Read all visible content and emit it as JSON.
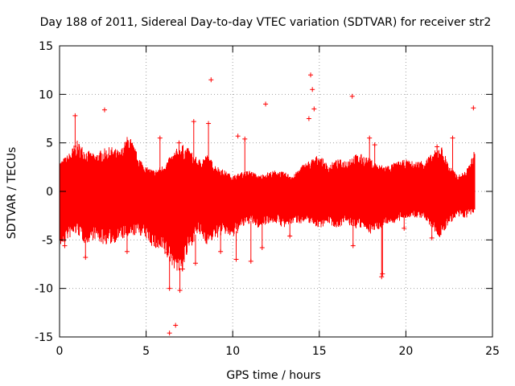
{
  "chart_data": {
    "type": "scatter",
    "title": "Day 188 of 2011, Sidereal Day-to-day VTEC variation (SDTVAR) for receiver str2",
    "xlabel": "GPS time / hours",
    "ylabel": "SDTVAR / TECUs",
    "xlim": [
      0,
      25
    ],
    "ylim": [
      -15,
      15
    ],
    "grid": true,
    "marker": "+",
    "series_color": "#ff0000",
    "xticks": [
      0,
      5,
      10,
      15,
      20,
      25
    ],
    "yticks": [
      -15,
      -10,
      -5,
      0,
      5,
      10,
      15
    ],
    "xtick_labels": [
      "0",
      "5",
      "10",
      "15",
      "20",
      "25"
    ],
    "ytick_labels": [
      "-15",
      "-10",
      "-5",
      "0",
      "5",
      "10",
      "15"
    ],
    "envelope": {
      "x": [
        0,
        0.5,
        1.0,
        1.5,
        2.0,
        2.5,
        3.0,
        3.5,
        4.0,
        4.5,
        5.0,
        5.5,
        6.0,
        6.5,
        7.0,
        7.5,
        8.0,
        8.5,
        9.0,
        9.5,
        10.0,
        10.5,
        11.0,
        11.5,
        12.0,
        12.5,
        13.0,
        13.5,
        14.0,
        14.5,
        15.0,
        15.5,
        16.0,
        16.5,
        17.0,
        17.5,
        18.0,
        18.5,
        19.0,
        19.5,
        20.0,
        20.5,
        21.0,
        21.5,
        22.0,
        22.5,
        23.0,
        23.5,
        24.0
      ],
      "upper": [
        2.8,
        3.5,
        4.8,
        4.0,
        3.5,
        4.0,
        4.2,
        3.8,
        5.5,
        3.5,
        2.3,
        2.0,
        2.5,
        3.5,
        4.5,
        4.0,
        3.0,
        3.5,
        2.5,
        2.0,
        1.5,
        1.8,
        2.0,
        1.5,
        1.8,
        2.0,
        1.8,
        1.5,
        2.5,
        3.0,
        3.5,
        2.5,
        3.0,
        3.0,
        3.5,
        3.5,
        3.0,
        2.5,
        2.5,
        2.8,
        3.0,
        2.8,
        3.0,
        3.5,
        4.5,
        2.5,
        1.5,
        2.0,
        4.0
      ],
      "lower": [
        -5.5,
        -4.5,
        -4.0,
        -5.0,
        -4.5,
        -5.0,
        -5.0,
        -4.5,
        -4.5,
        -4.0,
        -4.5,
        -5.5,
        -6.0,
        -7.0,
        -8.0,
        -5.5,
        -4.0,
        -5.0,
        -4.5,
        -4.0,
        -4.5,
        -3.5,
        -3.0,
        -3.5,
        -3.0,
        -3.0,
        -3.5,
        -3.0,
        -3.0,
        -3.0,
        -3.5,
        -3.0,
        -3.5,
        -3.0,
        -3.5,
        -3.5,
        -4.0,
        -3.5,
        -3.0,
        -3.0,
        -2.5,
        -2.5,
        -2.5,
        -3.5,
        -4.5,
        -3.0,
        -2.5,
        -2.5,
        -2.0
      ]
    },
    "outliers": [
      {
        "x": 0.9,
        "y": 7.8
      },
      {
        "x": 2.6,
        "y": 8.4
      },
      {
        "x": 8.75,
        "y": 11.5
      },
      {
        "x": 11.9,
        "y": 9.0
      },
      {
        "x": 16.9,
        "y": 9.8
      },
      {
        "x": 14.5,
        "y": 12.0
      },
      {
        "x": 14.6,
        "y": 10.5
      },
      {
        "x": 14.7,
        "y": 8.5
      },
      {
        "x": 14.4,
        "y": 7.5
      },
      {
        "x": 23.9,
        "y": 8.6
      },
      {
        "x": 7.75,
        "y": 7.2
      },
      {
        "x": 10.3,
        "y": 5.7
      },
      {
        "x": 10.7,
        "y": 5.4
      },
      {
        "x": 8.6,
        "y": 7.0
      },
      {
        "x": 17.9,
        "y": 5.5
      },
      {
        "x": 18.2,
        "y": 4.8
      },
      {
        "x": 1.5,
        "y": -6.8
      },
      {
        "x": 3.9,
        "y": -6.2
      },
      {
        "x": 6.35,
        "y": -10.0
      },
      {
        "x": 6.95,
        "y": -10.2
      },
      {
        "x": 6.35,
        "y": -14.6
      },
      {
        "x": 6.7,
        "y": -13.8
      },
      {
        "x": 7.85,
        "y": -7.4
      },
      {
        "x": 11.05,
        "y": -7.2
      },
      {
        "x": 11.7,
        "y": -5.8
      },
      {
        "x": 16.95,
        "y": -5.6
      },
      {
        "x": 18.6,
        "y": -8.8
      },
      {
        "x": 18.65,
        "y": -8.5
      },
      {
        "x": 10.2,
        "y": -7.0
      },
      {
        "x": 21.5,
        "y": -4.8
      },
      {
        "x": 13.3,
        "y": -4.6
      },
      {
        "x": 9.3,
        "y": -6.2
      },
      {
        "x": 6.2,
        "y": -6.3
      },
      {
        "x": 7.1,
        "y": -8.0
      },
      {
        "x": 5.8,
        "y": 5.5
      },
      {
        "x": 6.9,
        "y": 5.0
      },
      {
        "x": 22.7,
        "y": 5.5
      },
      {
        "x": 21.8,
        "y": 4.6
      },
      {
        "x": 0.3,
        "y": -5.6
      },
      {
        "x": 19.9,
        "y": -3.8
      }
    ]
  }
}
